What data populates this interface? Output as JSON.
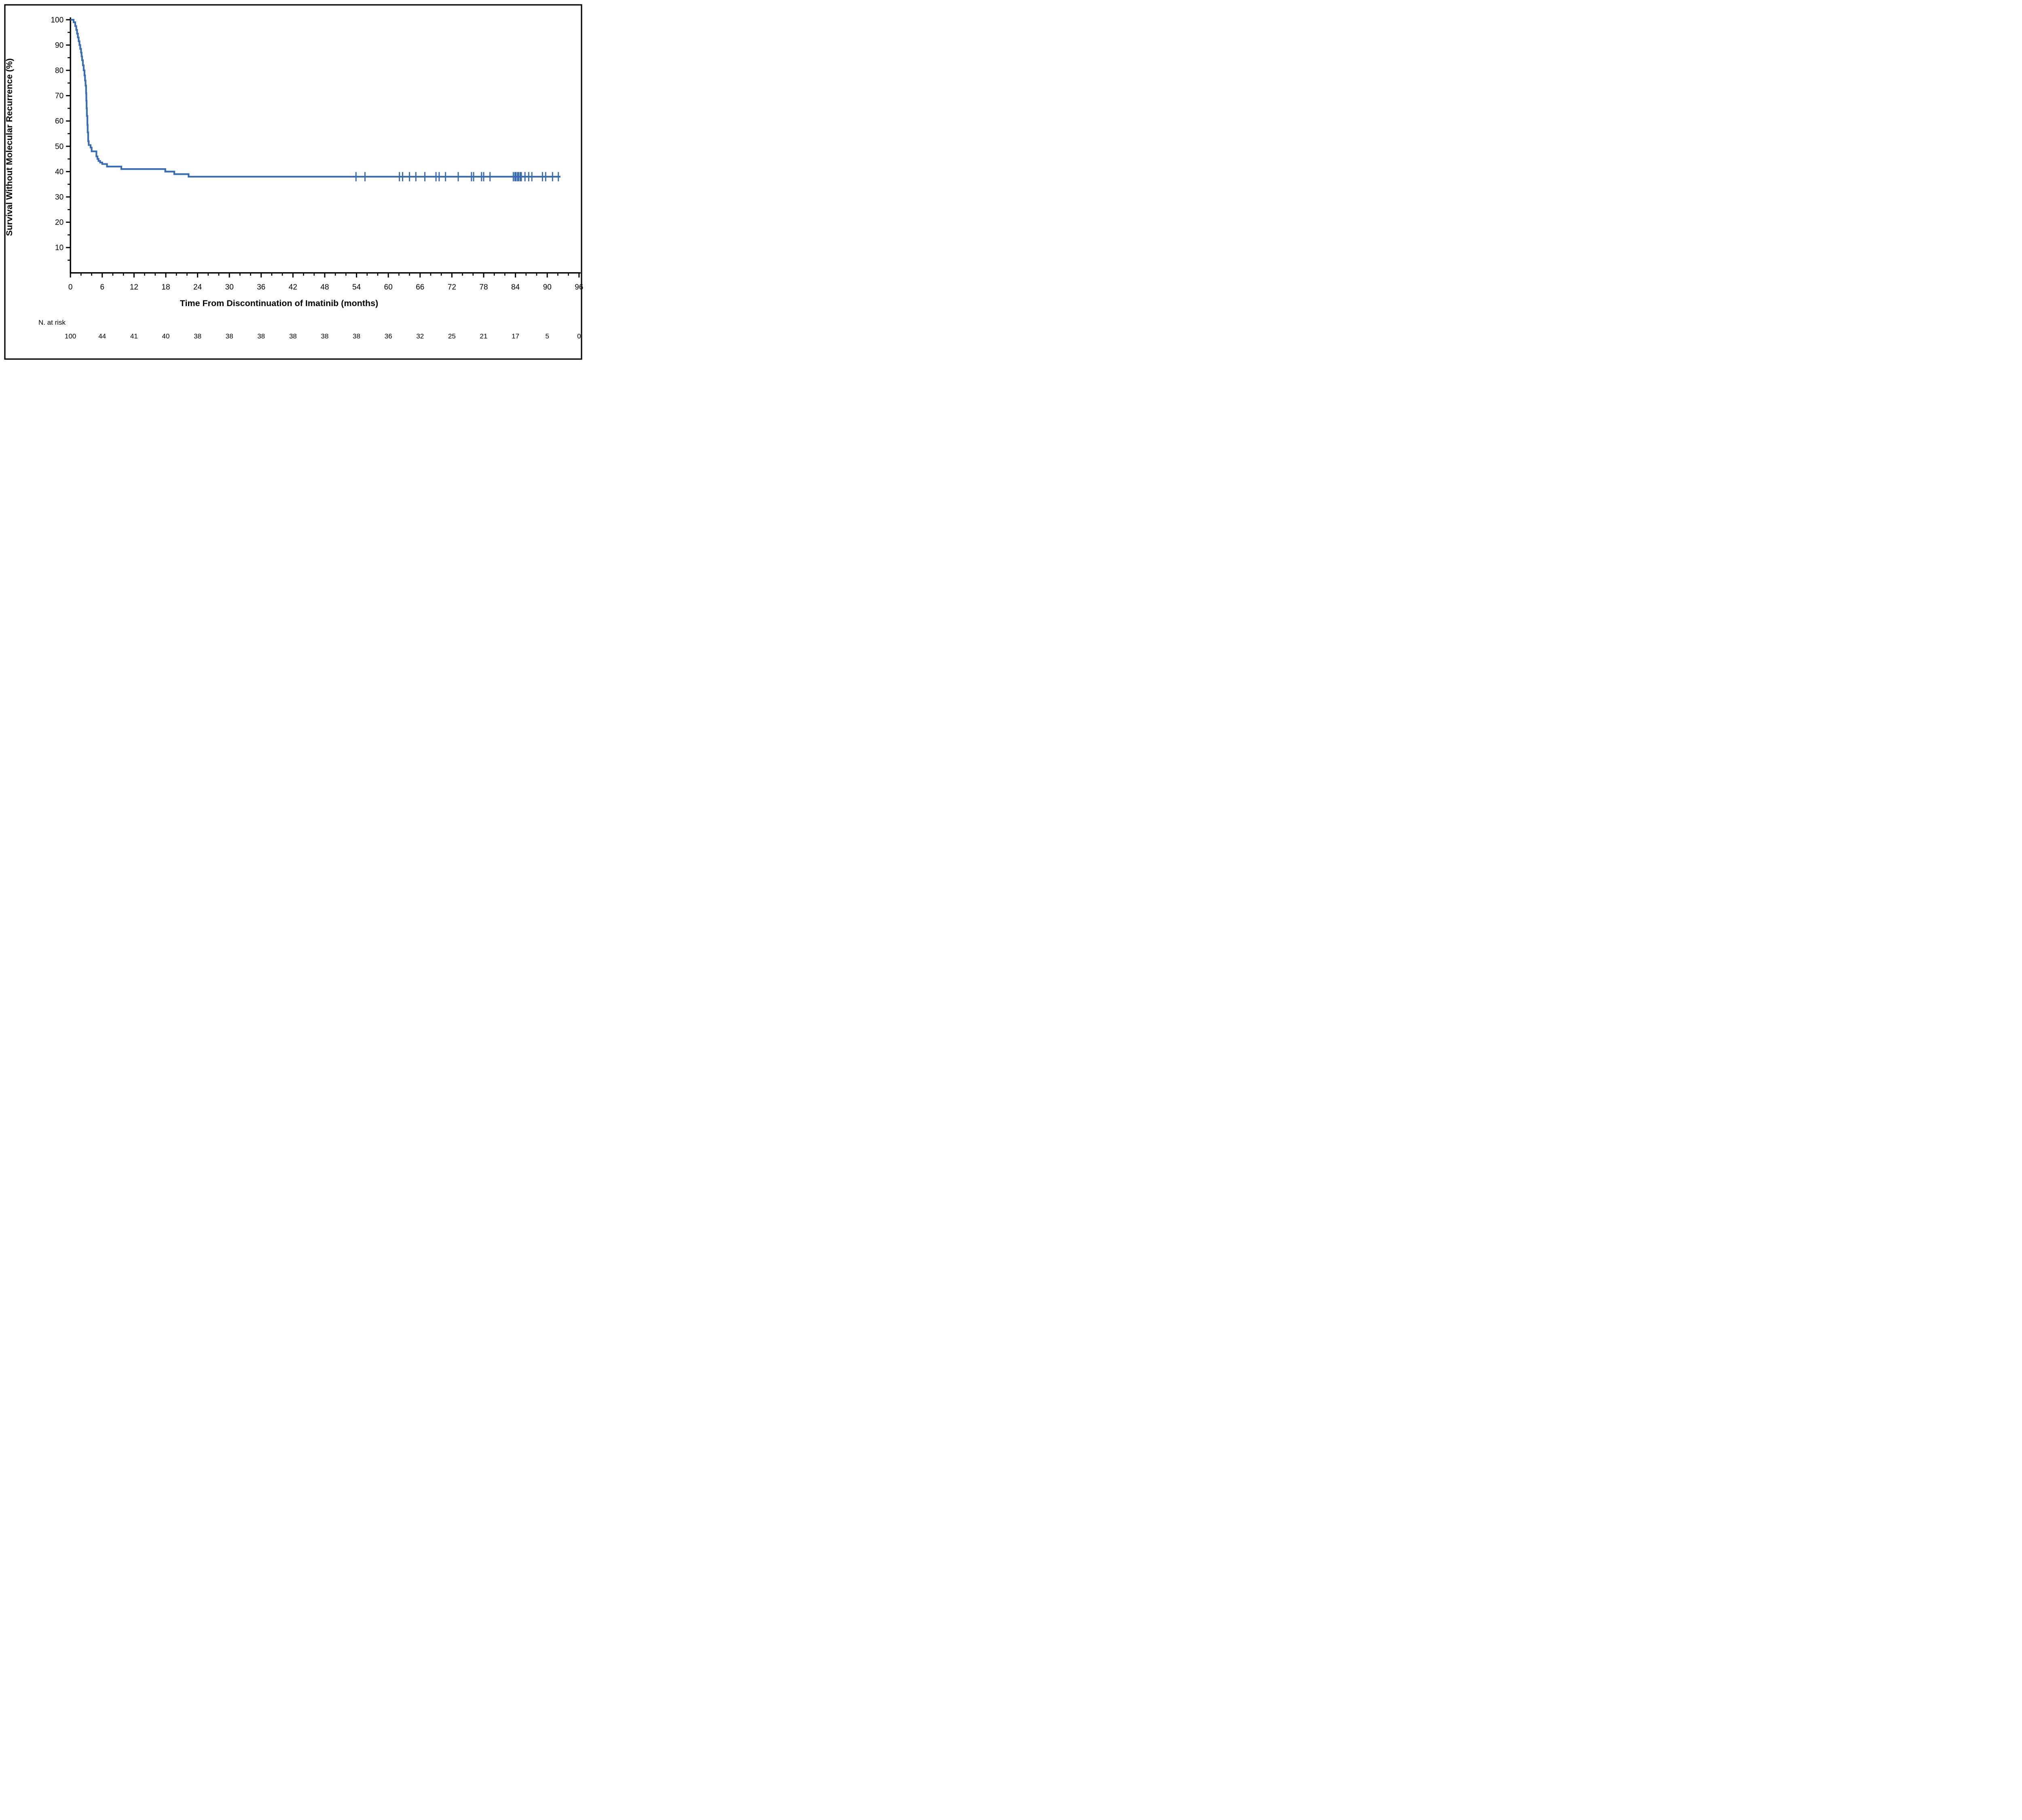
{
  "figure": {
    "background_color": "#ffffff",
    "border_color": "#000000",
    "y_axis": {
      "title": "Survival Without Molecular Recurrence (%)",
      "min": 0,
      "max": 100,
      "major_ticks": [
        100,
        90,
        80,
        70,
        60,
        50,
        40,
        30,
        20,
        10
      ],
      "minor_tick_step": 5
    },
    "x_axis": {
      "title": "Time From Discontinuation of Imatinib (months)",
      "min": 0,
      "max": 96,
      "major_ticks": [
        0,
        6,
        12,
        18,
        24,
        30,
        36,
        42,
        48,
        54,
        60,
        66,
        72,
        78,
        84,
        90,
        96
      ],
      "minor_tick_step": 2
    },
    "at_risk": {
      "label": "N. at risk",
      "times": [
        0,
        6,
        12,
        18,
        24,
        30,
        36,
        42,
        48,
        54,
        60,
        66,
        72,
        78,
        84,
        90,
        96
      ],
      "values": [
        100,
        44,
        41,
        40,
        38,
        38,
        38,
        38,
        38,
        38,
        36,
        32,
        25,
        21,
        17,
        5,
        0
      ]
    },
    "colors": {
      "curve": "#3a6cb3",
      "axis": "#000000",
      "text": "#000000"
    }
  },
  "chart_data": {
    "type": "line",
    "subtype": "kaplan-meier-step-curve",
    "title": "",
    "xlabel": "Time From Discontinuation of Imatinib (months)",
    "ylabel": "Survival Without Molecular Recurrence (%)",
    "xlim": [
      0,
      96
    ],
    "ylim": [
      0,
      100
    ],
    "grid": false,
    "legend": "none",
    "series": [
      {
        "name": "Survival without molecular recurrence",
        "start_value": 100,
        "steps": [
          [
            0.6,
            99
          ],
          [
            0.9,
            97.5
          ],
          [
            1.1,
            96
          ],
          [
            1.25,
            94.5
          ],
          [
            1.4,
            93
          ],
          [
            1.55,
            91.5
          ],
          [
            1.7,
            90
          ],
          [
            1.85,
            88.5
          ],
          [
            2.0,
            87
          ],
          [
            2.1,
            85.5
          ],
          [
            2.2,
            84
          ],
          [
            2.35,
            82
          ],
          [
            2.5,
            80
          ],
          [
            2.65,
            78
          ],
          [
            2.75,
            76
          ],
          [
            2.85,
            74
          ],
          [
            2.95,
            71
          ],
          [
            3.0,
            68
          ],
          [
            3.05,
            65
          ],
          [
            3.1,
            62
          ],
          [
            3.2,
            58.5
          ],
          [
            3.25,
            55.5
          ],
          [
            3.35,
            52
          ],
          [
            3.45,
            50.5
          ],
          [
            3.8,
            49.5
          ],
          [
            4.0,
            48
          ],
          [
            4.9,
            46
          ],
          [
            5.1,
            45
          ],
          [
            5.3,
            44.2
          ],
          [
            5.6,
            43.6
          ],
          [
            6.0,
            43
          ],
          [
            6.9,
            42
          ],
          [
            9.6,
            41
          ],
          [
            17.9,
            40
          ],
          [
            19.6,
            39
          ],
          [
            22.3,
            38
          ]
        ],
        "plateau_value": 38,
        "end_month": 92.5,
        "censor_mark_months": [
          53.9,
          55.6,
          62.1,
          62.7,
          64.0,
          65.2,
          66.9,
          69.0,
          69.6,
          70.8,
          73.2,
          75.7,
          76.1,
          77.6,
          78.0,
          79.2,
          83.6,
          83.9,
          84.1,
          84.4,
          84.6,
          84.9,
          85.1,
          85.8,
          86.5,
          87.1,
          89.1,
          89.7,
          91.0,
          92.1
        ],
        "censor_marks_at_pct": 38
      }
    ],
    "n_at_risk": {
      "label": "N. at risk",
      "times": [
        0,
        6,
        12,
        18,
        24,
        30,
        36,
        42,
        48,
        54,
        60,
        66,
        72,
        78,
        84,
        90,
        96
      ],
      "values": [
        100,
        44,
        41,
        40,
        38,
        38,
        38,
        38,
        38,
        38,
        36,
        32,
        25,
        21,
        17,
        5,
        0
      ]
    }
  }
}
